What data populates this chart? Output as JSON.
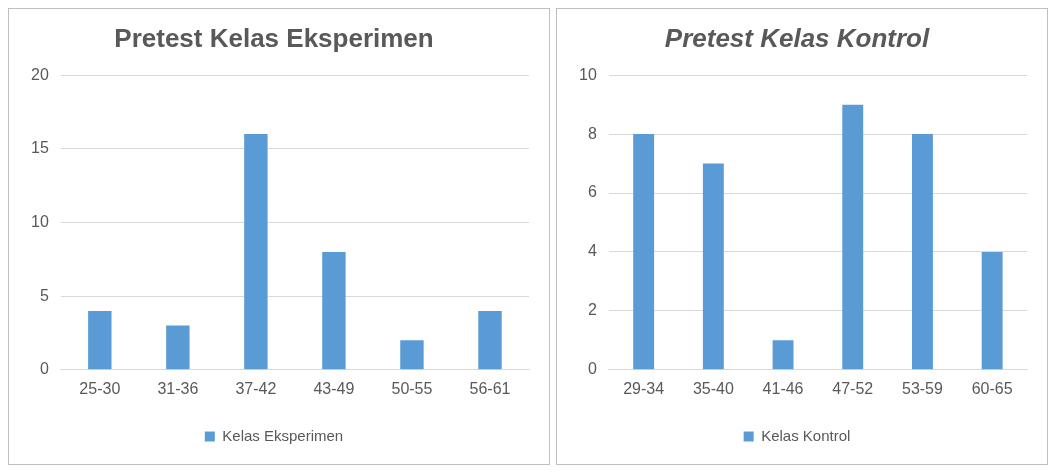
{
  "chart_data": [
    {
      "type": "bar",
      "title": "Pretest Kelas Eksperimen",
      "categories": [
        "25-30",
        "31-36",
        "37-42",
        "43-49",
        "50-55",
        "56-61"
      ],
      "series": [
        {
          "name": "Kelas Eksperimen",
          "color": "#5b9bd5",
          "values": [
            4,
            3,
            16,
            8,
            2,
            4
          ]
        }
      ],
      "ylim": [
        0,
        20
      ],
      "yticks": [
        0,
        5,
        10,
        15,
        20
      ],
      "grid": "y",
      "legend": "bottom"
    },
    {
      "type": "bar",
      "title": "Pretest Kelas Kontrol",
      "categories": [
        "29-34",
        "35-40",
        "41-46",
        "47-52",
        "53-59",
        "60-65"
      ],
      "series": [
        {
          "name": "Kelas Kontrol",
          "color": "#5b9bd5",
          "values": [
            8,
            7,
            1,
            9,
            8,
            4
          ]
        }
      ],
      "ylim": [
        0,
        10
      ],
      "yticks": [
        0,
        2,
        4,
        6,
        8,
        10
      ],
      "grid": "y",
      "legend": "bottom"
    }
  ]
}
